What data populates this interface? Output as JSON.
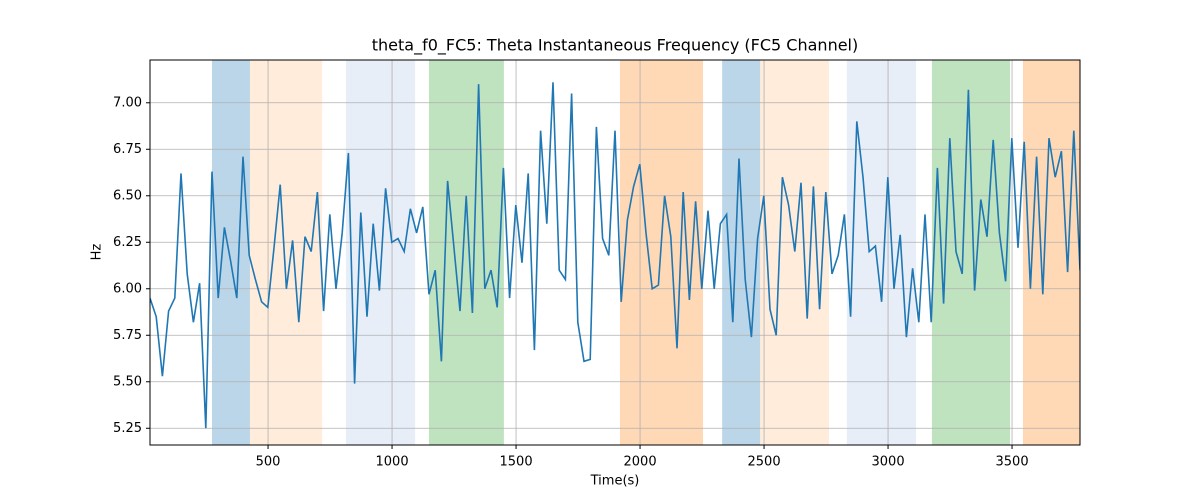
{
  "chart_data": {
    "type": "line",
    "title": "theta_f0_FC5: Theta Instantaneous Frequency (FC5 Channel)",
    "xlabel": "Time(s)",
    "ylabel": "Hz",
    "xlim": [
      24,
      3774
    ],
    "ylim": [
      5.16,
      7.23
    ],
    "xticks": [
      500,
      1000,
      1500,
      2000,
      2500,
      3000,
      3500
    ],
    "yticks": [
      5.25,
      {
        "value": 5.5,
        "label": "5.50"
      },
      5.75,
      {
        "value": 6,
        "label": "6.00"
      },
      6.25,
      {
        "value": 6.5,
        "label": "6.50"
      },
      6.75,
      {
        "value": 7,
        "label": "7.00"
      }
    ],
    "grid": true,
    "spans": [
      {
        "start": 274,
        "end": 427,
        "color": "#1f77b4",
        "alpha": 0.3
      },
      {
        "start": 427,
        "end": 718,
        "color": "#ff7f0e",
        "alpha": 0.15
      },
      {
        "start": 814,
        "end": 1093,
        "color": "#aec7e8",
        "alpha": 0.3
      },
      {
        "start": 1149,
        "end": 1451,
        "color": "#2ca02c",
        "alpha": 0.3
      },
      {
        "start": 1919,
        "end": 2254,
        "color": "#ff7f0e",
        "alpha": 0.3
      },
      {
        "start": 2331,
        "end": 2484,
        "color": "#1f77b4",
        "alpha": 0.3
      },
      {
        "start": 2484,
        "end": 2762,
        "color": "#ff7f0e",
        "alpha": 0.15
      },
      {
        "start": 2834,
        "end": 3113,
        "color": "#aec7e8",
        "alpha": 0.3
      },
      {
        "start": 3177,
        "end": 3492,
        "color": "#2ca02c",
        "alpha": 0.3
      },
      {
        "start": 3544,
        "end": 3774,
        "color": "#ff7f0e",
        "alpha": 0.3
      }
    ],
    "color": "#1f77b4",
    "x": [
      24,
      49,
      74,
      99,
      124,
      149,
      174,
      199,
      224,
      249,
      274,
      299,
      324,
      349,
      374,
      399,
      424,
      449,
      474,
      499,
      524,
      549,
      574,
      599,
      624,
      649,
      674,
      699,
      724,
      749,
      774,
      799,
      824,
      849,
      874,
      899,
      924,
      949,
      974,
      999,
      1024,
      1049,
      1074,
      1099,
      1124,
      1149,
      1174,
      1199,
      1224,
      1249,
      1274,
      1299,
      1324,
      1349,
      1374,
      1399,
      1424,
      1449,
      1474,
      1499,
      1524,
      1549,
      1574,
      1599,
      1624,
      1649,
      1674,
      1699,
      1724,
      1749,
      1774,
      1799,
      1824,
      1849,
      1874,
      1899,
      1924,
      1949,
      1974,
      1999,
      2024,
      2049,
      2074,
      2099,
      2124,
      2149,
      2174,
      2199,
      2224,
      2249,
      2274,
      2299,
      2324,
      2349,
      2374,
      2399,
      2424,
      2449,
      2474,
      2499,
      2524,
      2549,
      2574,
      2599,
      2624,
      2649,
      2674,
      2699,
      2724,
      2749,
      2774,
      2799,
      2824,
      2849,
      2874,
      2899,
      2924,
      2949,
      2974,
      2999,
      3024,
      3049,
      3074,
      3099,
      3124,
      3149,
      3174,
      3199,
      3224,
      3249,
      3274,
      3299,
      3324,
      3349,
      3374,
      3399,
      3424,
      3449,
      3474,
      3499,
      3524,
      3549,
      3574,
      3599,
      3624,
      3649,
      3674,
      3699,
      3724,
      3749,
      3774
    ],
    "values": [
      5.95,
      5.85,
      5.53,
      5.88,
      5.95,
      6.62,
      6.08,
      5.82,
      6.03,
      5.25,
      6.63,
      5.95,
      6.33,
      6.15,
      5.95,
      6.71,
      6.18,
      6.05,
      5.93,
      5.9,
      6.22,
      6.56,
      6.0,
      6.26,
      5.82,
      6.28,
      6.2,
      6.52,
      5.88,
      6.4,
      6.0,
      6.3,
      6.73,
      5.49,
      6.41,
      5.85,
      6.35,
      5.99,
      6.54,
      6.25,
      6.27,
      6.2,
      6.43,
      6.3,
      6.44,
      5.97,
      6.1,
      5.61,
      6.58,
      6.23,
      5.88,
      6.5,
      5.87,
      7.1,
      6.0,
      6.1,
      5.9,
      6.65,
      5.95,
      6.45,
      6.14,
      6.62,
      5.67,
      6.85,
      6.35,
      7.11,
      6.1,
      6.05,
      7.05,
      5.82,
      5.61,
      5.62,
      6.87,
      6.27,
      6.18,
      6.85,
      5.93,
      6.37,
      6.55,
      6.67,
      6.3,
      6.0,
      6.02,
      6.5,
      6.28,
      5.68,
      6.52,
      5.94,
      6.47,
      6.0,
      6.42,
      6.0,
      6.35,
      6.4,
      5.82,
      6.7,
      6.05,
      5.74,
      6.27,
      6.5,
      5.89,
      5.75,
      6.6,
      6.45,
      6.2,
      6.57,
      5.84,
      6.55,
      5.89,
      6.52,
      6.08,
      6.18,
      6.4,
      5.85,
      6.9,
      6.6,
      6.2,
      6.23,
      5.93,
      6.6,
      6.0,
      6.29,
      5.74,
      6.11,
      5.82,
      6.4,
      5.82,
      6.65,
      5.92,
      6.81,
      6.2,
      6.08,
      7.07,
      5.99,
      6.48,
      6.28,
      6.8,
      6.3,
      6.04,
      6.81,
      6.22,
      6.79,
      6.0,
      6.71,
      5.97,
      6.81,
      6.6,
      6.74,
      6.09,
      6.85,
      6.1
    ]
  }
}
